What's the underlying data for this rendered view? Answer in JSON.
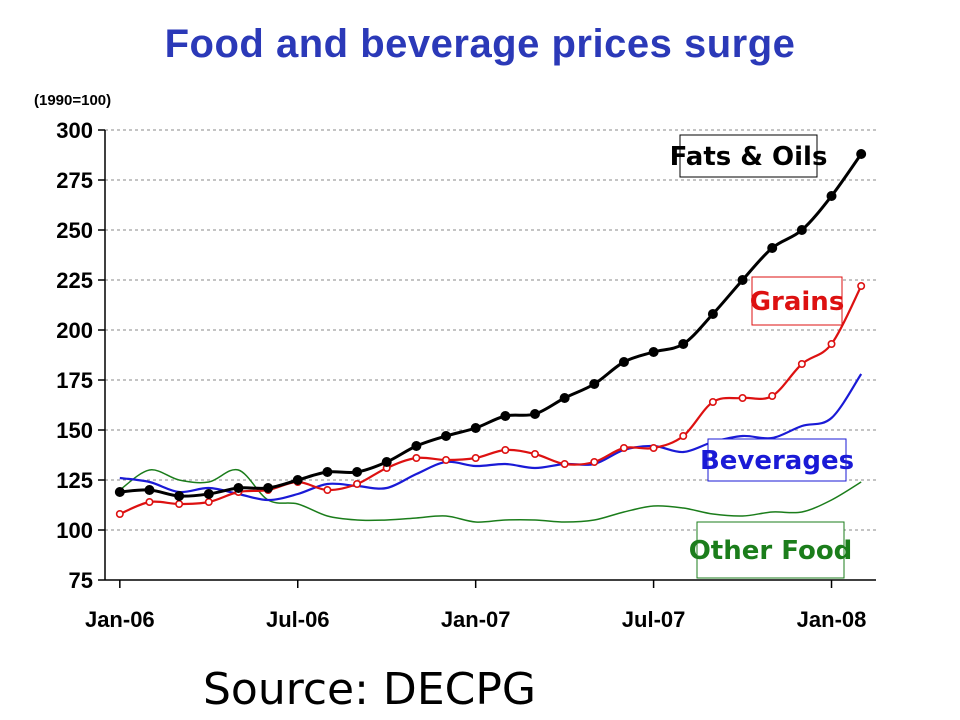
{
  "chart_data": {
    "type": "line",
    "title": "Food and beverage prices surge",
    "unit_label": "(1990=100)",
    "source": "Source: DECPG",
    "ylim": [
      75,
      300
    ],
    "y_ticks": [
      "75",
      "100",
      "125",
      "150",
      "175",
      "200",
      "225",
      "250",
      "275",
      "300"
    ],
    "y_tick_values": [
      75,
      100,
      125,
      150,
      175,
      200,
      225,
      250,
      275,
      300
    ],
    "x_ticks": [
      "Jan-06",
      "Jul-06",
      "Jan-07",
      "Jul-07",
      "Jan-08"
    ],
    "x_tick_months": [
      0,
      6,
      12,
      18,
      24
    ],
    "x_range_months": [
      -0.5,
      25.5
    ],
    "grid": true,
    "series": [
      {
        "name": "Fats & Oils",
        "color": "#000000",
        "marker": "filled-dot",
        "x": [
          0,
          1,
          2,
          3,
          4,
          5,
          6,
          7,
          8,
          9,
          10,
          11,
          12,
          13,
          14,
          15,
          16,
          17,
          18,
          19,
          20,
          21,
          22,
          23,
          24,
          25
        ],
        "values": [
          119,
          120,
          117,
          118,
          121,
          121,
          125,
          129,
          129,
          134,
          142,
          147,
          151,
          157,
          158,
          166,
          173,
          184,
          189,
          193,
          208,
          225,
          241,
          250,
          267,
          288
        ]
      },
      {
        "name": "Grains",
        "color": "#dd1111",
        "marker": "hollow-dot",
        "x": [
          0,
          1,
          2,
          3,
          4,
          5,
          6,
          7,
          8,
          9,
          10,
          11,
          12,
          13,
          14,
          15,
          16,
          17,
          18,
          19,
          20,
          21,
          22,
          23,
          24,
          25
        ],
        "values": [
          108,
          114,
          113,
          114,
          119,
          120,
          124,
          120,
          123,
          131,
          136,
          135,
          136,
          140,
          138,
          133,
          134,
          141,
          141,
          147,
          164,
          166,
          167,
          183,
          193,
          222
        ]
      },
      {
        "name": "Beverages",
        "color": "#1a1ad6",
        "marker": "none",
        "x": [
          0,
          1,
          2,
          3,
          4,
          5,
          6,
          7,
          8,
          9,
          10,
          11,
          12,
          13,
          14,
          15,
          16,
          17,
          18,
          19,
          20,
          21,
          22,
          23,
          24,
          25
        ],
        "values": [
          126,
          124,
          119,
          121,
          118,
          115,
          118,
          123,
          122,
          121,
          128,
          134,
          132,
          133,
          131,
          133,
          133,
          140,
          142,
          139,
          144,
          147,
          146,
          152,
          156,
          178
        ]
      },
      {
        "name": "Other Food",
        "color": "#1b7d1b",
        "marker": "none",
        "x": [
          0,
          1,
          2,
          3,
          4,
          5,
          6,
          7,
          8,
          9,
          10,
          11,
          12,
          13,
          14,
          15,
          16,
          17,
          18,
          19,
          20,
          21,
          22,
          23,
          24,
          25
        ],
        "values": [
          120,
          130,
          125,
          124,
          130,
          115,
          113,
          107,
          105,
          105,
          106,
          107,
          104,
          105,
          105,
          104,
          105,
          109,
          112,
          111,
          108,
          107,
          109,
          109,
          115,
          124
        ]
      }
    ],
    "legend": [
      {
        "label": "Fats & Oils",
        "color": "#000000"
      },
      {
        "label": "Grains",
        "color": "#dd1111"
      },
      {
        "label": "Beverages",
        "color": "#1a1ad6"
      },
      {
        "label": "Other Food",
        "color": "#1b7d1b"
      }
    ]
  }
}
